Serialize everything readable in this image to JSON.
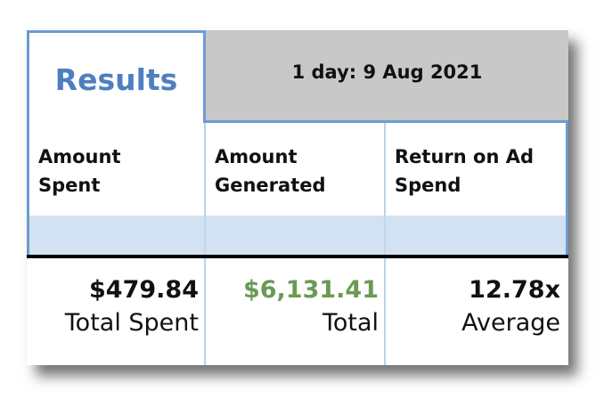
{
  "tab": {
    "label": "Results"
  },
  "date_bar": {
    "label": "1 day: 9 Aug 2021"
  },
  "columns": [
    {
      "header_line1": "Amount",
      "header_line2": "Spent",
      "value": "$479.84",
      "sublabel": "Total Spent"
    },
    {
      "header_line1": "Amount",
      "header_line2": "Generated",
      "value": "$6,131.41",
      "sublabel": "Total"
    },
    {
      "header_line1": "Return on Ad",
      "header_line2": "Spend",
      "value": "12.78x",
      "sublabel": "Average"
    }
  ],
  "colors": {
    "accent_blue": "#4d7fc0",
    "border_blue": "#6c9bd0",
    "band_blue": "#d3e2f2",
    "date_bar_gray": "#c8c8c8",
    "positive_green": "#6a9a54"
  }
}
